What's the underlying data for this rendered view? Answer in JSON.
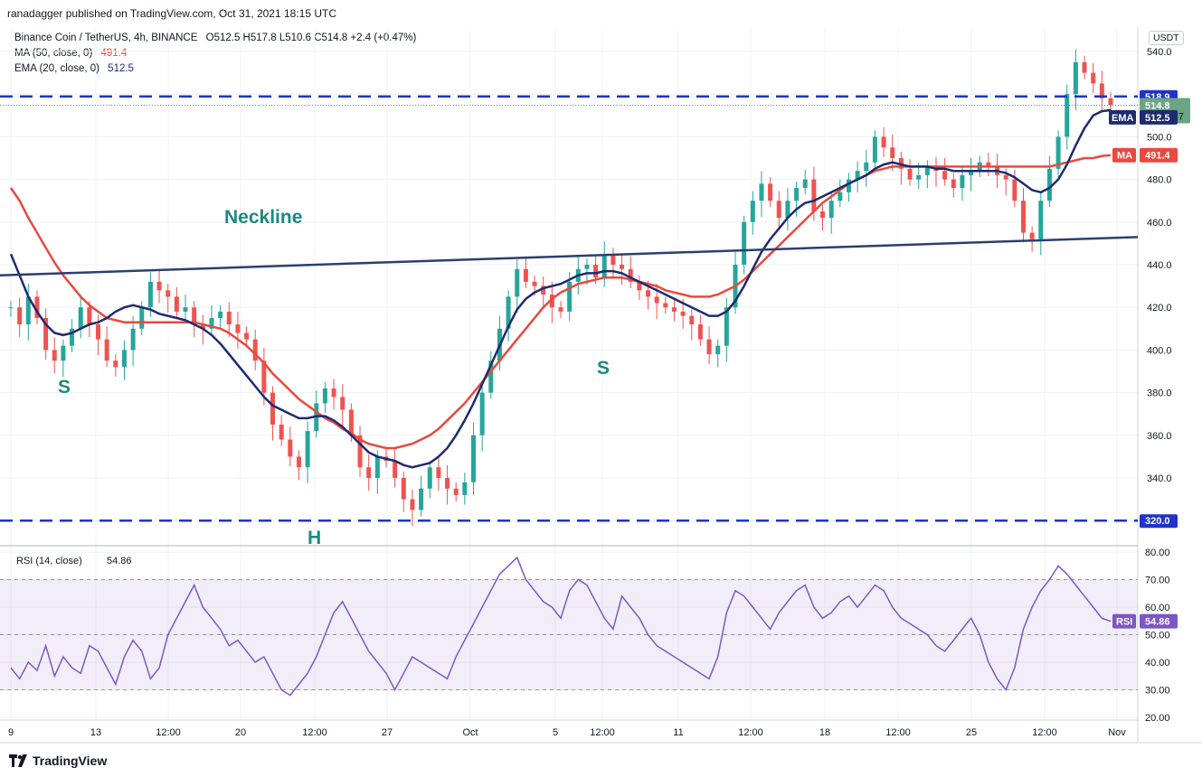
{
  "header": {
    "published": "ranadagger published on TradingView.com, Oct 31, 2021 18:15 UTC",
    "symbol": "Binance Coin / TetherUS, 4h, BINANCE",
    "ohlc": "O512.5 H517.8 L510.6 C514.8 +2.4 (+0.47%)",
    "ma_label": "MA (50, close, 0)",
    "ma_value": "491.4",
    "ema_label": "EMA (20, close, 0)",
    "ema_value": "512.5",
    "currency": "USDT"
  },
  "rsi_panel": {
    "label": "RSI (14, close)",
    "value": "54.86",
    "badge": "RSI"
  },
  "footer": {
    "brand": "TradingView"
  },
  "colors": {
    "up": "#26a69a",
    "down": "#ef5350",
    "ema": "#1e2c6e",
    "ma": "#e9493f",
    "level": "#1d33c9",
    "neckline": "#2b3f6f",
    "rsi": "#7e57c2"
  },
  "chart_data": [
    {
      "type": "candlestick",
      "y_axis_ticks": [
        "540.0",
        "520.0",
        "500.0",
        "480.0",
        "460.0",
        "440.0",
        "420.0",
        "400.0",
        "380.0",
        "360.0",
        "340.0",
        "320.0"
      ],
      "ylim": [
        315,
        545
      ],
      "x_axis_ticks": [
        "9",
        "13",
        "12:00",
        "20",
        "12:00",
        "27",
        "Oct",
        "5",
        "12:00",
        "11",
        "12:00",
        "18",
        "12:00",
        "25",
        "12:00",
        "Nov"
      ],
      "levels": [
        {
          "label": "518.9",
          "value": 518.9
        },
        {
          "label": "320.0",
          "value": 320.0
        }
      ],
      "neckline": {
        "label": "Neckline",
        "from": 435,
        "to": 453
      },
      "annotations": [
        "S",
        "H",
        "S"
      ],
      "last_price": {
        "price": "514.8",
        "countdown": "01:44:57"
      },
      "ema_badge": {
        "label": "EMA",
        "value": "512.5"
      },
      "ma_badge": {
        "label": "MA",
        "value": "491.4"
      },
      "close_path": [
        420,
        412,
        425,
        415,
        400,
        395,
        402,
        410,
        420,
        412,
        405,
        395,
        392,
        400,
        410,
        420,
        432,
        428,
        425,
        418,
        420,
        412,
        410,
        415,
        418,
        412,
        408,
        405,
        395,
        380,
        365,
        358,
        350,
        345,
        362,
        375,
        382,
        378,
        372,
        360,
        345,
        340,
        350,
        348,
        340,
        330,
        325,
        335,
        345,
        340,
        335,
        332,
        338,
        360,
        380,
        395,
        410,
        425,
        438,
        432,
        430,
        426,
        420,
        418,
        432,
        438,
        440,
        434,
        445,
        440,
        438,
        432,
        428,
        425,
        422,
        420,
        418,
        416,
        412,
        405,
        398,
        402,
        420,
        440,
        460,
        470,
        478,
        470,
        462,
        470,
        476,
        480,
        465,
        462,
        470,
        474,
        480,
        484,
        488,
        500,
        495,
        490,
        485,
        480,
        482,
        486,
        484,
        480,
        476,
        482,
        484,
        488,
        486,
        482,
        480,
        470,
        455,
        452,
        470,
        485,
        500,
        520,
        535,
        530,
        525,
        518,
        514.8
      ],
      "ema_path": [
        445,
        435,
        425,
        418,
        412,
        408,
        407,
        408,
        410,
        412,
        413,
        415,
        418,
        420,
        421,
        420,
        419,
        417,
        416,
        415,
        414,
        412,
        410,
        407,
        403,
        398,
        393,
        388,
        383,
        378,
        374,
        372,
        370,
        368,
        368,
        369,
        369,
        367,
        364,
        360,
        356,
        352,
        350,
        349,
        348,
        346,
        345,
        346,
        347,
        350,
        354,
        360,
        367,
        375,
        384,
        393,
        402,
        411,
        419,
        424,
        427,
        429,
        430,
        431,
        433,
        435,
        436,
        436,
        437,
        437,
        436,
        434,
        432,
        430,
        428,
        426,
        424,
        422,
        420,
        418,
        416,
        416,
        418,
        423,
        430,
        438,
        446,
        452,
        457,
        462,
        466,
        469,
        470,
        472,
        474,
        476,
        478,
        480,
        482,
        485,
        487,
        488,
        487,
        486,
        486,
        486,
        485,
        485,
        484,
        484,
        484,
        484,
        484,
        484,
        483,
        481,
        478,
        475,
        474,
        476,
        480,
        487,
        496,
        504,
        510,
        512,
        512.5
      ],
      "ma_path": [
        476,
        470,
        462,
        455,
        448,
        441,
        435,
        430,
        425,
        421,
        418,
        415,
        414,
        413,
        413,
        413,
        413,
        413,
        413,
        413,
        413,
        413,
        412,
        411,
        410,
        408,
        405,
        402,
        398,
        394,
        389,
        385,
        381,
        377,
        374,
        371,
        368,
        366,
        363,
        361,
        358,
        356,
        355,
        354,
        354,
        355,
        356,
        358,
        360,
        363,
        367,
        371,
        375,
        380,
        385,
        390,
        395,
        400,
        405,
        410,
        415,
        420,
        424,
        427,
        429,
        431,
        432,
        433,
        434,
        434,
        434,
        433,
        432,
        431,
        430,
        428,
        427,
        426,
        425,
        425,
        425,
        426,
        428,
        430,
        433,
        437,
        441,
        445,
        449,
        453,
        457,
        461,
        465,
        469,
        472,
        475,
        478,
        480,
        482,
        484,
        485,
        486,
        486,
        486,
        486,
        486,
        486,
        486,
        486,
        486,
        486,
        486,
        486,
        486,
        486,
        486,
        486,
        486,
        486,
        486,
        487,
        488,
        489,
        490,
        490,
        491,
        491.4
      ]
    },
    {
      "type": "line",
      "y_axis_ticks": [
        "80.00",
        "70.00",
        "60.00",
        "50.00",
        "40.00",
        "30.00",
        "20.00"
      ],
      "ylim": [
        19,
        81
      ],
      "band": [
        30,
        70
      ],
      "values": [
        38,
        34,
        40,
        37,
        46,
        35,
        42,
        38,
        36,
        46,
        44,
        38,
        32,
        42,
        48,
        44,
        34,
        38,
        50,
        56,
        62,
        68,
        60,
        56,
        52,
        46,
        48,
        44,
        40,
        42,
        36,
        30,
        28,
        32,
        36,
        42,
        50,
        58,
        62,
        56,
        50,
        44,
        40,
        36,
        30,
        36,
        42,
        40,
        38,
        36,
        34,
        42,
        48,
        54,
        60,
        66,
        72,
        75,
        78,
        70,
        66,
        62,
        60,
        56,
        66,
        70,
        68,
        62,
        56,
        52,
        64,
        60,
        56,
        50,
        46,
        44,
        42,
        40,
        38,
        36,
        34,
        42,
        58,
        66,
        64,
        60,
        56,
        52,
        58,
        62,
        66,
        68,
        60,
        56,
        58,
        62,
        64,
        60,
        64,
        68,
        66,
        60,
        56,
        54,
        52,
        50,
        46,
        44,
        48,
        52,
        56,
        50,
        40,
        34,
        30,
        38,
        52,
        60,
        66,
        70,
        75,
        72,
        68,
        64,
        60,
        56,
        54.86
      ]
    }
  ]
}
